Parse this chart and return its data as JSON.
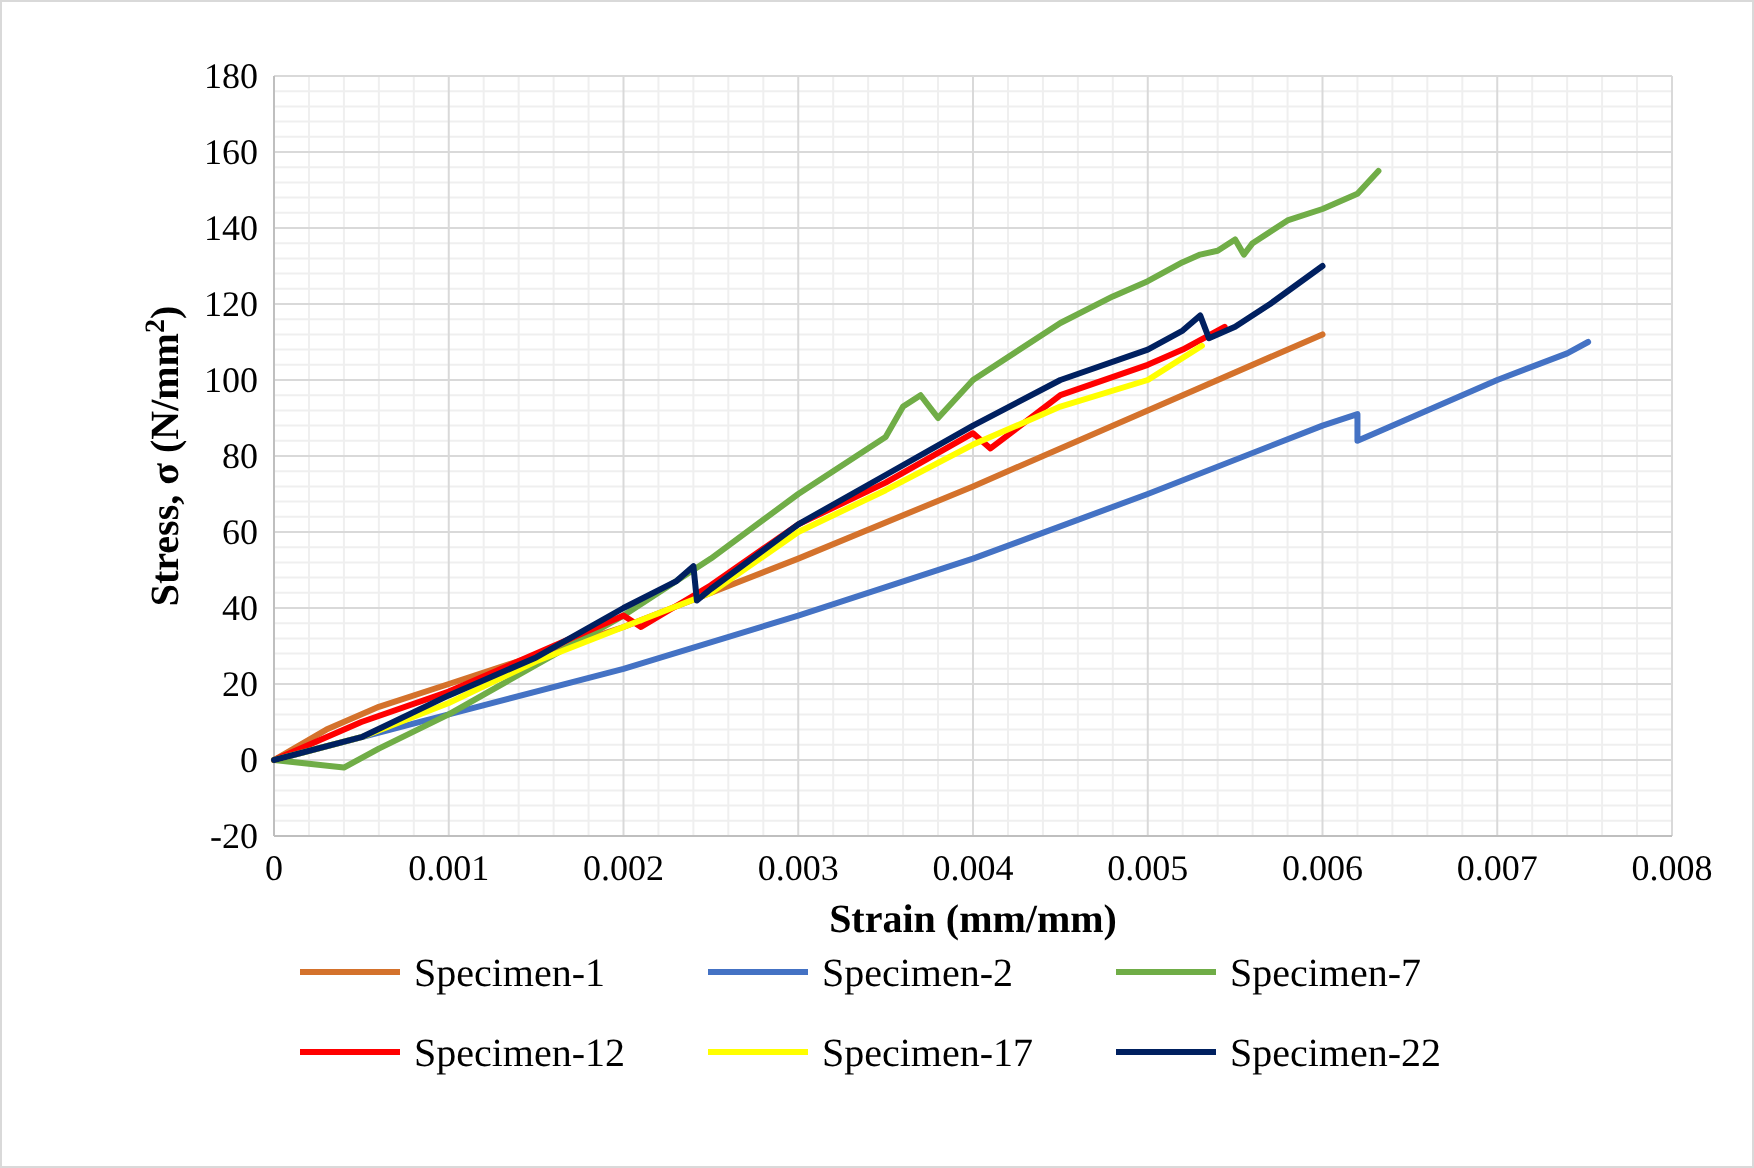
{
  "chart_data": {
    "type": "line",
    "xlabel": "Strain (mm/mm)",
    "ylabel": "Stress, σ (N/mm$^{2}$)",
    "xlim": [
      0,
      0.008
    ],
    "xticks": [
      0,
      0.001,
      0.002,
      0.003,
      0.004,
      0.005,
      0.006,
      0.007,
      0.008
    ],
    "ylim": [
      -20,
      180
    ],
    "yticks": [
      -20,
      0,
      20,
      40,
      60,
      80,
      100,
      120,
      140,
      160,
      180
    ],
    "grid": true,
    "legend": "bottom",
    "marker": "none",
    "line_style": "solid",
    "series": [
      {
        "name": "Specimen-1",
        "color": "#d4722c",
        "x": [
          0,
          0.0003,
          0.0006,
          0.001,
          0.002,
          0.003,
          0.004,
          0.005,
          0.006
        ],
        "values": [
          0,
          8,
          14,
          20,
          35,
          53,
          72,
          92,
          112
        ]
      },
      {
        "name": "Specimen-2",
        "color": "#4472c4",
        "x": [
          0,
          0.001,
          0.002,
          0.003,
          0.004,
          0.005,
          0.006,
          0.0062,
          0.0062,
          0.0063,
          0.007,
          0.0074,
          0.00752
        ],
        "values": [
          0,
          12,
          24,
          38,
          53,
          70,
          88,
          91,
          84,
          86,
          100,
          107,
          110
        ]
      },
      {
        "name": "Specimen-7",
        "color": "#70ad47",
        "x": [
          0,
          0.0002,
          0.0004,
          0.0006,
          0.001,
          0.0015,
          0.002,
          0.0025,
          0.003,
          0.0035,
          0.0036,
          0.0037,
          0.0038,
          0.004,
          0.0045,
          0.0048,
          0.005,
          0.0052,
          0.0053,
          0.0054,
          0.0055,
          0.00555,
          0.0056,
          0.0058,
          0.006,
          0.0062,
          0.00632
        ],
        "values": [
          0,
          -1,
          -2,
          3,
          12,
          25,
          38,
          53,
          70,
          85,
          93,
          96,
          90,
          100,
          115,
          122,
          126,
          131,
          133,
          134,
          137,
          133,
          136,
          142,
          145,
          149,
          155
        ]
      },
      {
        "name": "Specimen-12",
        "color": "#ff0000",
        "x": [
          0,
          0.0005,
          0.001,
          0.0015,
          0.002,
          0.0021,
          0.0025,
          0.003,
          0.0035,
          0.004,
          0.0041,
          0.0045,
          0.005,
          0.0052,
          0.00544
        ],
        "values": [
          0,
          10,
          18,
          28,
          38,
          35,
          46,
          62,
          73,
          86,
          82,
          96,
          104,
          108,
          114
        ]
      },
      {
        "name": "Specimen-17",
        "color": "#ffff00",
        "x": [
          0,
          0.0005,
          0.001,
          0.0015,
          0.002,
          0.0025,
          0.003,
          0.0035,
          0.004,
          0.0045,
          0.005,
          0.00531
        ],
        "values": [
          0,
          6,
          15,
          26,
          35,
          44,
          60,
          71,
          83,
          93,
          100,
          109
        ]
      },
      {
        "name": "Specimen-22",
        "color": "#002060",
        "x": [
          0,
          0.0005,
          0.001,
          0.0015,
          0.002,
          0.0023,
          0.0024,
          0.00242,
          0.0025,
          0.003,
          0.0035,
          0.004,
          0.0045,
          0.005,
          0.0052,
          0.0053,
          0.00535,
          0.0055,
          0.0057,
          0.006
        ],
        "values": [
          0,
          6,
          17,
          27,
          40,
          47,
          51,
          42,
          45,
          62,
          75,
          88,
          100,
          108,
          113,
          117,
          111,
          114,
          120,
          130
        ]
      }
    ]
  }
}
